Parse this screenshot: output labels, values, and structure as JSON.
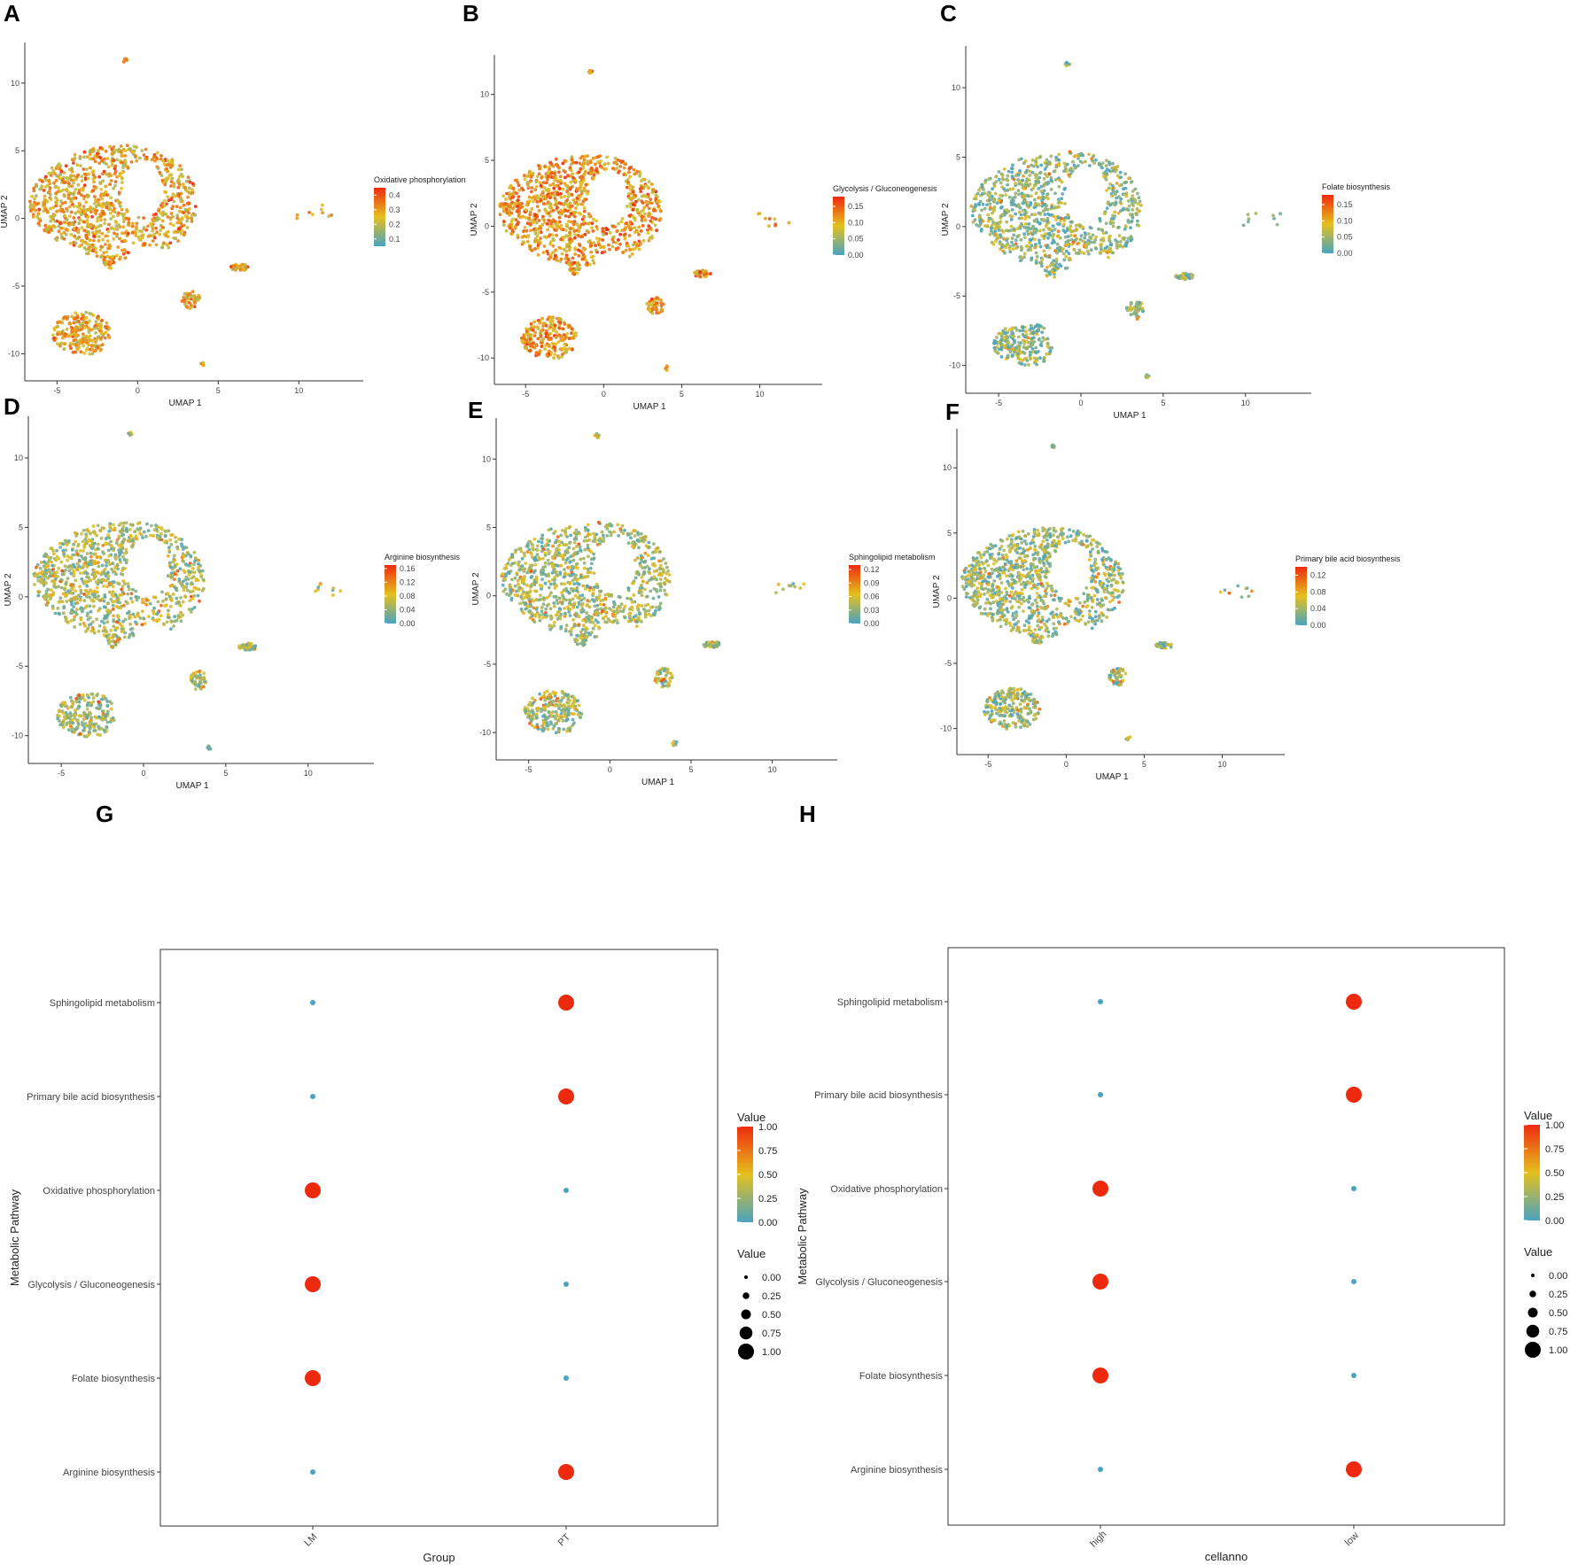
{
  "panel_letters": [
    "A",
    "B",
    "C",
    "D",
    "E",
    "F",
    "G",
    "H"
  ],
  "colors": {
    "low": "#4aa3c0",
    "mid": "#e5c01e",
    "high": "#ee2a0e",
    "axis": "#333333"
  },
  "chart_data": [
    {
      "panel": "A",
      "type": "scatter",
      "xlabel": "UMAP 1",
      "ylabel": "UMAP 2",
      "xlim": [
        -7,
        14
      ],
      "ylim": [
        -12,
        13
      ],
      "x_ticks": [
        "-5",
        "0",
        "5",
        "10"
      ],
      "y_ticks": [
        "-10",
        "-5",
        "0",
        "5",
        "10"
      ],
      "legend_title": "Oxidative phosphorylation",
      "legend_ticks": [
        "0.4",
        "0.3",
        "0.2",
        "0.1"
      ],
      "color_range": [
        0.05,
        0.45
      ],
      "mean_level": 0.55
    },
    {
      "panel": "B",
      "type": "scatter",
      "xlabel": "UMAP 1",
      "ylabel": "UMAP 2",
      "xlim": [
        -7,
        14
      ],
      "ylim": [
        -12,
        13
      ],
      "x_ticks": [
        "-5",
        "0",
        "5",
        "10"
      ],
      "y_ticks": [
        "-10",
        "-5",
        "0",
        "5",
        "10"
      ],
      "legend_title": "Glycolysis / Gluconeogenesis",
      "legend_ticks": [
        "0.15",
        "0.10",
        "0.05",
        "0.00"
      ],
      "color_range": [
        0,
        0.18
      ],
      "mean_level": 0.62
    },
    {
      "panel": "C",
      "type": "scatter",
      "xlabel": "UMAP 1",
      "ylabel": "UMAP 2",
      "xlim": [
        -7,
        14
      ],
      "ylim": [
        -12,
        13
      ],
      "x_ticks": [
        "-5",
        "0",
        "5",
        "10"
      ],
      "y_ticks": [
        "-10",
        "-5",
        "0",
        "5",
        "10"
      ],
      "legend_title": "Folate biosynthesis",
      "legend_ticks": [
        "0.15",
        "0.10",
        "0.05",
        "0.00"
      ],
      "color_range": [
        0,
        0.18
      ],
      "mean_level": 0.22
    },
    {
      "panel": "D",
      "type": "scatter",
      "xlabel": "UMAP 1",
      "ylabel": "UMAP 2",
      "xlim": [
        -7,
        14
      ],
      "ylim": [
        -12,
        13
      ],
      "x_ticks": [
        "-5",
        "0",
        "5",
        "10"
      ],
      "y_ticks": [
        "-10",
        "-5",
        "0",
        "5",
        "10"
      ],
      "legend_title": "Arginine biosynthesis",
      "legend_ticks": [
        "0.16",
        "0.12",
        "0.08",
        "0.04",
        "0.00"
      ],
      "color_range": [
        0,
        0.17
      ],
      "mean_level": 0.3
    },
    {
      "panel": "E",
      "type": "scatter",
      "xlabel": "UMAP 1",
      "ylabel": "UMAP 2",
      "xlim": [
        -7,
        14
      ],
      "ylim": [
        -12,
        13
      ],
      "x_ticks": [
        "-5",
        "0",
        "5",
        "10"
      ],
      "y_ticks": [
        "-10",
        "-5",
        "0",
        "5",
        "10"
      ],
      "legend_title": "Sphingolipid metabolism",
      "legend_ticks": [
        "0.12",
        "0.09",
        "0.06",
        "0.03",
        "0.00"
      ],
      "color_range": [
        0,
        0.13
      ],
      "mean_level": 0.28
    },
    {
      "panel": "F",
      "type": "scatter",
      "xlabel": "UMAP 1",
      "ylabel": "UMAP 2",
      "xlim": [
        -7,
        14
      ],
      "ylim": [
        -12,
        13
      ],
      "x_ticks": [
        "-5",
        "0",
        "5",
        "10"
      ],
      "y_ticks": [
        "-10",
        "-5",
        "0",
        "5",
        "10"
      ],
      "legend_title": "Primary bile acid biosynthesis",
      "legend_ticks": [
        "0.12",
        "0.08",
        "0.04",
        "0.00"
      ],
      "color_range": [
        0,
        0.14
      ],
      "mean_level": 0.24
    },
    {
      "panel": "G",
      "type": "dot",
      "xlabel": "Group",
      "ylabel": "Metabolic Pathway",
      "categories": [
        "LM",
        "PT"
      ],
      "pathways": [
        "Sphingolipid metabolism",
        "Primary bile acid biosynthesis",
        "Oxidative phosphorylation",
        "Glycolysis / Gluconeogenesis",
        "Folate biosynthesis",
        "Arginine biosynthesis"
      ],
      "values": [
        [
          0,
          1
        ],
        [
          0,
          1
        ],
        [
          1,
          0
        ],
        [
          1,
          0
        ],
        [
          1,
          0
        ],
        [
          0,
          1
        ]
      ],
      "color_legend_title": "Value",
      "color_legend_ticks": [
        "1.00",
        "0.75",
        "0.50",
        "0.25",
        "0.00"
      ],
      "size_legend_title": "Value",
      "size_legend_ticks": [
        "0.00",
        "0.25",
        "0.50",
        "0.75",
        "1.00"
      ]
    },
    {
      "panel": "H",
      "type": "dot",
      "xlabel": "cellanno",
      "ylabel": "Metabolic Pathway",
      "categories": [
        "high",
        "low"
      ],
      "pathways": [
        "Sphingolipid metabolism",
        "Primary bile acid biosynthesis",
        "Oxidative phosphorylation",
        "Glycolysis / Gluconeogenesis",
        "Folate biosynthesis",
        "Arginine biosynthesis"
      ],
      "values": [
        [
          0,
          1
        ],
        [
          0,
          1
        ],
        [
          1,
          0
        ],
        [
          1,
          0
        ],
        [
          1,
          0
        ],
        [
          0,
          1
        ]
      ],
      "color_legend_title": "Value",
      "color_legend_ticks": [
        "1.00",
        "0.75",
        "0.50",
        "0.25",
        "0.00"
      ],
      "size_legend_title": "Value",
      "size_legend_ticks": [
        "0.00",
        "0.25",
        "0.50",
        "0.75",
        "1.00"
      ]
    }
  ]
}
